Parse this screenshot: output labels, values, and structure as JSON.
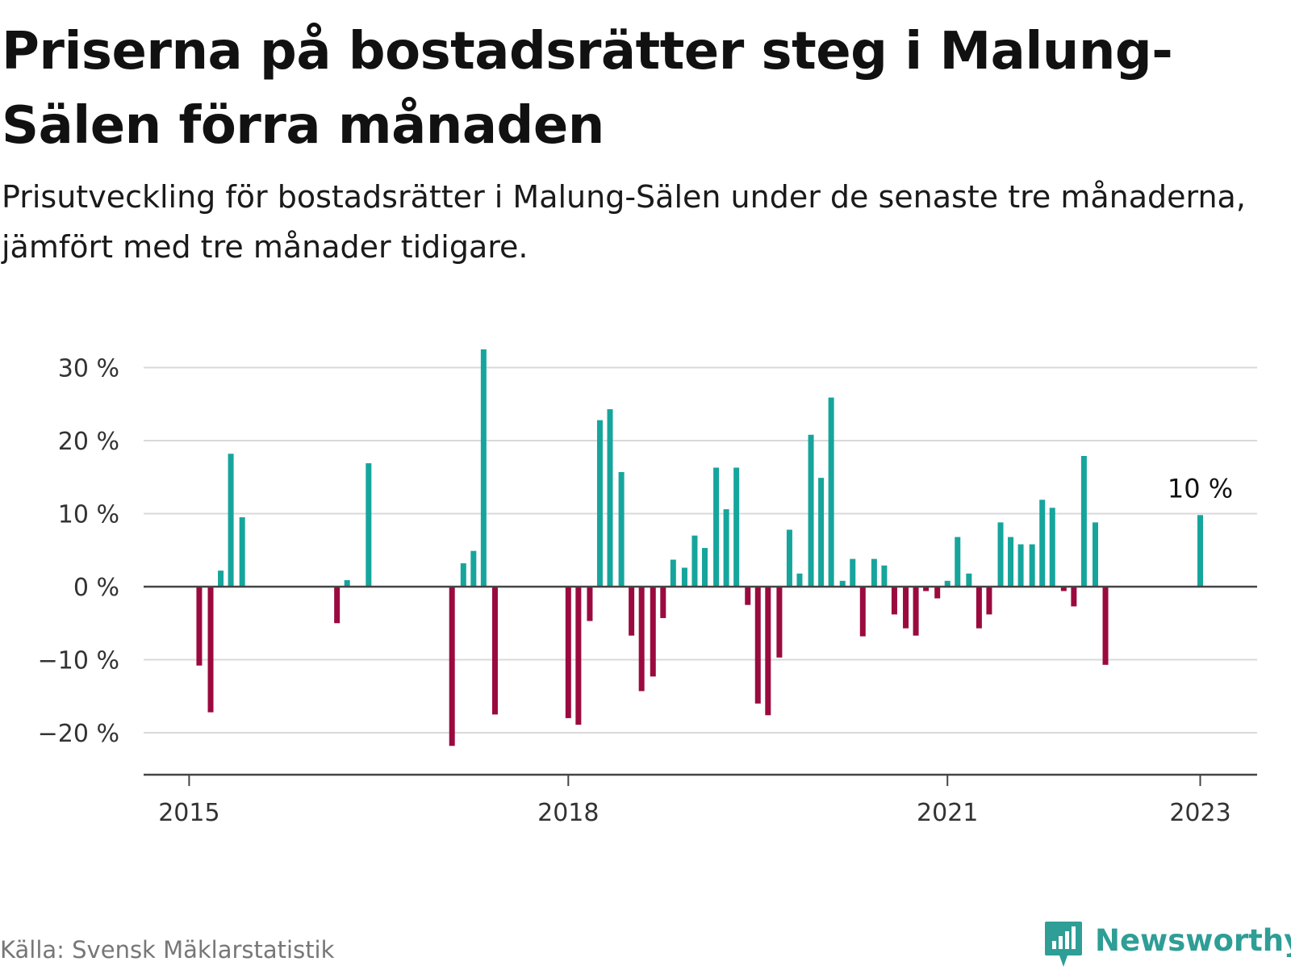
{
  "title": "Priserna på bostadsrätter steg i Malung-Sälen förra månaden",
  "subtitle": "Prisutveckling för bostadsrätter i Malung-Sälen under de senaste tre månaderna, jämfört med tre månader tidigare.",
  "source": "Källa: Svensk Mäklarstatistik",
  "brand": {
    "name": "Newsworthy",
    "icon": "newsworthy-logo-icon"
  },
  "colors": {
    "positive": "#16a59c",
    "negative": "#9b0a3f",
    "grid": "#d9d9d9",
    "zero_line": "#444444"
  },
  "chart_data": {
    "type": "bar",
    "title": "Priserna på bostadsrätter steg i Malung-Sälen förra månaden",
    "xlabel": "",
    "ylabel": "",
    "x_unit": "year (fractional)",
    "xlim": [
      2014.64,
      2023.45
    ],
    "ylim": [
      -25,
      33
    ],
    "yticks": [
      {
        "value": 30,
        "label": "30 %"
      },
      {
        "value": 20,
        "label": "20 %"
      },
      {
        "value": 10,
        "label": "10 %"
      },
      {
        "value": 0,
        "label": "0 %"
      },
      {
        "value": -10,
        "label": "−10 %"
      },
      {
        "value": -20,
        "label": "−20 %"
      }
    ],
    "xticks": [
      {
        "value": 2015,
        "label": "2015"
      },
      {
        "value": 2018,
        "label": "2018"
      },
      {
        "value": 2021,
        "label": "2021"
      },
      {
        "value": 2023,
        "label": "2023"
      }
    ],
    "grid": true,
    "legend": "none",
    "annotation": {
      "x": 2023.0,
      "y": 9.8,
      "label": "10 %"
    },
    "x": [
      2015.08,
      2015.17,
      2015.25,
      2015.33,
      2015.42,
      2016.17,
      2016.25,
      2016.42,
      2017.08,
      2017.17,
      2017.25,
      2017.33,
      2017.42,
      2018.0,
      2018.08,
      2018.17,
      2018.25,
      2018.33,
      2018.42,
      2018.5,
      2018.58,
      2018.67,
      2018.75,
      2018.83,
      2018.92,
      2019.0,
      2019.08,
      2019.17,
      2019.25,
      2019.33,
      2019.42,
      2019.5,
      2019.58,
      2019.67,
      2019.75,
      2019.83,
      2019.92,
      2020.0,
      2020.08,
      2020.17,
      2020.25,
      2020.33,
      2020.42,
      2020.5,
      2020.58,
      2020.67,
      2020.75,
      2020.83,
      2020.92,
      2021.0,
      2021.08,
      2021.17,
      2021.25,
      2021.33,
      2021.42,
      2021.5,
      2021.58,
      2021.67,
      2021.75,
      2021.83,
      2021.92,
      2022.0,
      2022.08,
      2022.17,
      2022.25,
      2023.0
    ],
    "values": [
      -10.8,
      -17.2,
      2.2,
      18.2,
      9.5,
      -5.0,
      0.9,
      16.9,
      -21.8,
      3.2,
      4.9,
      32.5,
      -17.5,
      -18.0,
      -18.9,
      -4.7,
      22.8,
      24.3,
      15.7,
      -6.7,
      -14.3,
      -12.3,
      -4.3,
      3.7,
      2.6,
      7.0,
      5.3,
      16.3,
      10.6,
      16.3,
      -2.5,
      -16.0,
      -17.6,
      -9.7,
      7.8,
      1.8,
      20.8,
      14.9,
      25.9,
      0.8,
      3.8,
      -6.8,
      3.8,
      2.9,
      -3.8,
      -5.7,
      -6.7,
      -0.6,
      -1.6,
      0.8,
      6.8,
      1.8,
      -5.7,
      -3.8,
      8.8,
      6.8,
      5.8,
      5.8,
      11.9,
      10.8,
      -0.6,
      -2.7,
      17.9,
      8.8,
      -10.7,
      9.8
    ]
  }
}
